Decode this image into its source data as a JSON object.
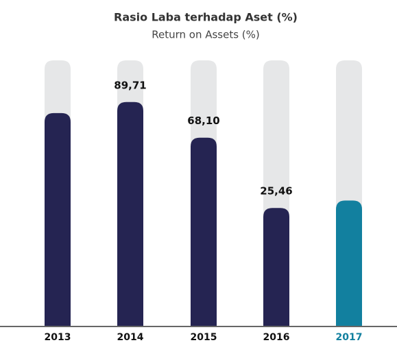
{
  "chart_data": {
    "type": "bar",
    "title": "Rasio Laba terhadap Aset (%)",
    "subtitle": "Return on Assets (%)",
    "categories": [
      "2013",
      "2014",
      "2015",
      "2016",
      "2017"
    ],
    "values": [
      83,
      89.71,
      68.1,
      25.46,
      30
    ],
    "value_labels": [
      null,
      "89,71",
      "68,10",
      "25,46",
      null
    ],
    "colors": [
      "#252452",
      "#252452",
      "#252452",
      "#252452",
      "#12809f"
    ],
    "label_colors": [
      "#111111",
      "#111111",
      "#111111",
      "#111111",
      "#12809f"
    ],
    "track_color": "#e6e7e8",
    "ylim": [
      -46,
      115
    ]
  }
}
